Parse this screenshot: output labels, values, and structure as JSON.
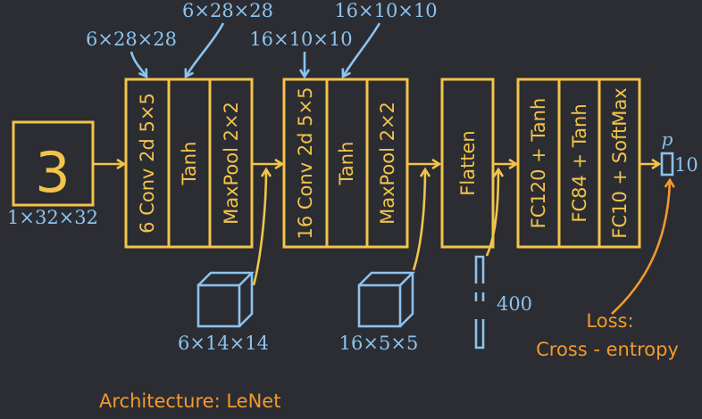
{
  "input": {
    "digit": "3",
    "shape": "1×32×32"
  },
  "block1": {
    "conv": "6 Conv 2d 5×5",
    "act": "Tanh",
    "pool": "MaxPool 2×2",
    "in_shape": "6×28×28",
    "act_shape": "6×28×28",
    "out_shape": "6×14×14"
  },
  "block2": {
    "conv": "16 Conv 2d 5×5",
    "act": "Tanh",
    "pool": "MaxPool 2×2",
    "in_shape": "16×10×10",
    "act_shape": "16×10×10",
    "out_shape": "16×5×5"
  },
  "flatten": {
    "label": "Flatten",
    "out_shape": "400"
  },
  "fc": {
    "fc1": "FC120 + Tanh",
    "fc2": "FC84 + Tanh",
    "fc3": "FC10 + SoftMax"
  },
  "output": {
    "symbol": "p",
    "size": "10"
  },
  "loss": {
    "line1": "Loss:",
    "line2": "Cross - entropy"
  },
  "caption": "Architecture: LeNet",
  "colors": {
    "background": "#2b2d33",
    "yellow": "#f3c34a",
    "blue": "#8cc3ee",
    "orange": "#f29a2e"
  }
}
